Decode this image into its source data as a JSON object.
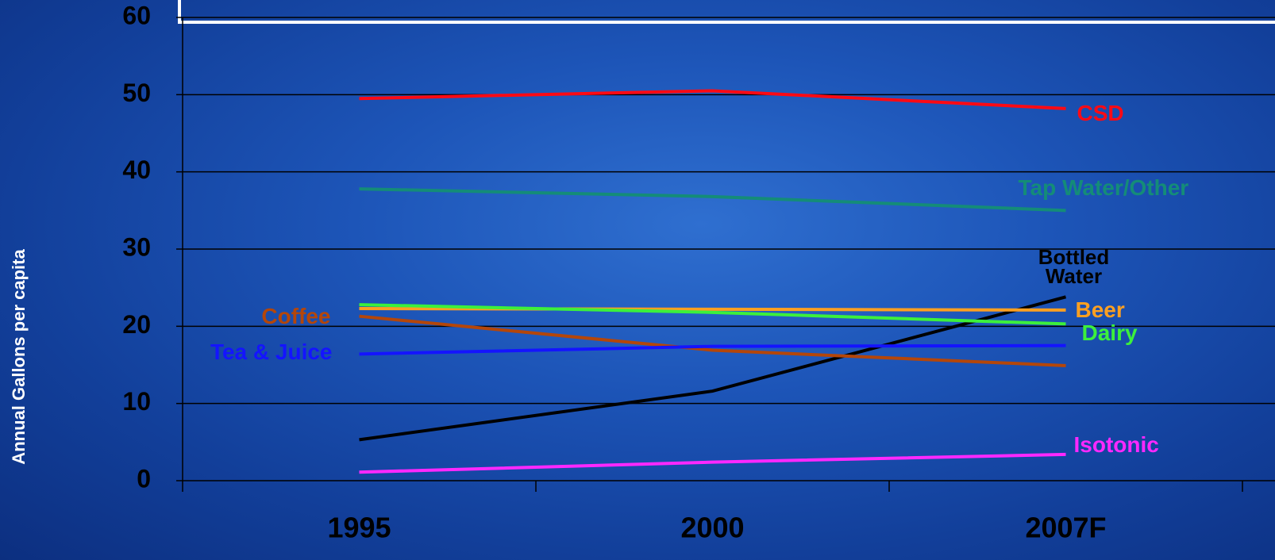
{
  "chart_data": {
    "type": "line",
    "y_label": "Annual Gallons per capita",
    "categories": [
      "1995",
      "2000",
      "2007F"
    ],
    "ylim": [
      0,
      60
    ],
    "yticks": [
      0,
      10,
      20,
      30,
      40,
      50,
      60
    ],
    "grid": true,
    "series": [
      {
        "name": "CSD",
        "color": "#ff0a14",
        "values": [
          49.5,
          50.5,
          48.2
        ]
      },
      {
        "name": "Tap Water/Other",
        "color": "#148c78",
        "values": [
          37.8,
          36.8,
          35.0
        ]
      },
      {
        "name": "Bottled Water",
        "color": "#000000",
        "values": [
          5.3,
          11.6,
          23.8
        ]
      },
      {
        "name": "Beer",
        "color": "#ffa020",
        "values": [
          22.3,
          22.2,
          22.1
        ]
      },
      {
        "name": "Dairy",
        "color": "#3cf03c",
        "values": [
          22.8,
          21.8,
          20.3
        ]
      },
      {
        "name": "Coffee",
        "color": "#b4460a",
        "values": [
          21.3,
          16.9,
          14.9
        ]
      },
      {
        "name": "Tea & Juice",
        "color": "#1414ff",
        "values": [
          16.4,
          17.4,
          17.5
        ]
      },
      {
        "name": "Isotonic",
        "color": "#ff28ff",
        "values": [
          1.1,
          2.4,
          3.4
        ]
      }
    ]
  }
}
